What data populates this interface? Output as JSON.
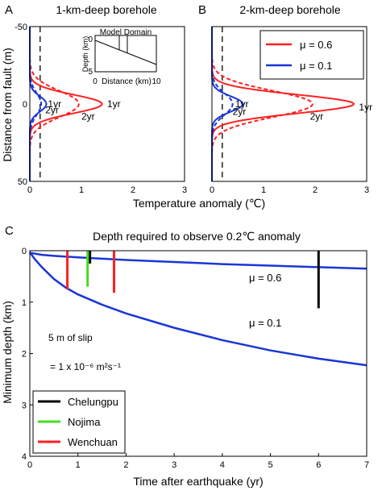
{
  "chart_data": [
    {
      "type": "line",
      "panel_letter": "A",
      "title": "1-km-deep borehole",
      "ylabel": "Distance from fault (m)",
      "xlabel": "Temperature anomaly (℃)",
      "xlim": [
        0,
        3
      ],
      "ylim": [
        -50,
        50
      ],
      "x_ticks": [
        "0",
        "1",
        "2",
        "3"
      ],
      "y_ticks": [
        "-50",
        "0",
        "50"
      ],
      "threshold_x": 0.2,
      "curve_labels": [
        {
          "text": "1yr",
          "x": 1.5,
          "y": 0
        },
        {
          "text": "2yr",
          "x": 1.0,
          "y": 8
        },
        {
          "text": "1yr",
          "x": 0.35,
          "y": 0
        },
        {
          "text": "2yr",
          "x": 0.3,
          "y": 4
        }
      ],
      "series": [
        {
          "name": "μ = 0.6, 1yr",
          "color": "#ff2020",
          "dash": "solid",
          "peak": 1.4,
          "width": 6
        },
        {
          "name": "μ = 0.6, 2yr",
          "color": "#ff2020",
          "dash": "dashed",
          "peak": 0.95,
          "width": 8.5
        },
        {
          "name": "μ = 0.1, 1yr",
          "color": "#1a36d6",
          "dash": "solid",
          "peak": 0.32,
          "width": 5
        },
        {
          "name": "μ = 0.1, 2yr",
          "color": "#1a36d6",
          "dash": "dashed",
          "peak": 0.22,
          "width": 7
        }
      ],
      "inset": {
        "title": "Model Domain",
        "xlabel": "Distance (km)",
        "ylabel": "Depth (km)",
        "x_ticks": [
          "0",
          "5",
          "10"
        ],
        "y_ticks": [
          "0",
          "5"
        ]
      }
    },
    {
      "type": "line",
      "panel_letter": "B",
      "title": "2-km-deep borehole",
      "xlim": [
        0,
        3
      ],
      "ylim": [
        -50,
        50
      ],
      "x_ticks": [
        "0",
        "1",
        "2",
        "3"
      ],
      "y_ticks": [
        "",
        "",
        ""
      ],
      "threshold_x": 0.2,
      "legend": [
        {
          "label": "μ  = 0.6",
          "color": "#ff2020"
        },
        {
          "label": "μ  = 0.1",
          "color": "#1a36d6"
        }
      ],
      "curve_labels": [
        {
          "text": "1yr",
          "x": 2.85,
          "y": 2
        },
        {
          "text": "2yr",
          "x": 1.9,
          "y": 8
        },
        {
          "text": "1yr",
          "x": 0.45,
          "y": 0
        },
        {
          "text": "2yr",
          "x": 0.4,
          "y": 5
        }
      ],
      "series": [
        {
          "name": "μ = 0.6, 1yr",
          "color": "#ff2020",
          "dash": "solid",
          "peak": 2.75,
          "width": 6
        },
        {
          "name": "μ = 0.6, 2yr",
          "color": "#ff2020",
          "dash": "dashed",
          "peak": 1.95,
          "width": 8.5
        },
        {
          "name": "μ = 0.1, 1yr",
          "color": "#1a36d6",
          "dash": "solid",
          "peak": 0.6,
          "width": 5
        },
        {
          "name": "μ = 0.1, 2yr",
          "color": "#1a36d6",
          "dash": "dashed",
          "peak": 0.4,
          "width": 7
        }
      ]
    },
    {
      "type": "line",
      "panel_letter": "C",
      "title": "Depth required to observe 0.2℃ anomaly",
      "xlabel": "Time after earthquake (yr)",
      "ylabel": "Minimum depth (km)",
      "xlim": [
        0,
        7
      ],
      "ylim": [
        0,
        4
      ],
      "x_ticks": [
        "0",
        "1",
        "2",
        "3",
        "4",
        "5",
        "6",
        "7"
      ],
      "y_ticks": [
        "0",
        "1",
        "2",
        "3",
        "4"
      ],
      "annotations": [
        {
          "text": "μ  = 0.6",
          "x": 4.55,
          "y": 0.52
        },
        {
          "text": "μ  = 0.1",
          "x": 4.55,
          "y": 1.45
        }
      ],
      "note_slip": "5 m of slip",
      "note_diffusivity": " = 1 x 10⁻⁶ m²s⁻¹",
      "series": [
        {
          "name": "μ  = 0.6",
          "color": "#1a36d6",
          "x": [
            0,
            0.25,
            0.5,
            1,
            2,
            3,
            4,
            5,
            6,
            7
          ],
          "y": [
            0.04,
            0.08,
            0.1,
            0.13,
            0.18,
            0.22,
            0.26,
            0.29,
            0.32,
            0.35
          ]
        },
        {
          "name": "μ  = 0.1",
          "color": "#1a36d6",
          "x": [
            0,
            0.1,
            0.25,
            0.5,
            0.75,
            1,
            1.5,
            2,
            3,
            4,
            5,
            6,
            7
          ],
          "y": [
            0.03,
            0.16,
            0.32,
            0.55,
            0.72,
            0.85,
            1.05,
            1.22,
            1.5,
            1.74,
            1.94,
            2.1,
            2.23
          ]
        }
      ],
      "markers": [
        {
          "label": "Chelungpu",
          "color": "#000000",
          "bars": [
            [
              1.25,
              0.0,
              0.25
            ],
            [
              6.0,
              0.0,
              1.12
            ]
          ]
        },
        {
          "label": "Nojima",
          "color": "#44dd22",
          "bars": [
            [
              1.2,
              0.0,
              0.7
            ]
          ]
        },
        {
          "label": "Wenchuan",
          "color": "#ff2020",
          "bars": [
            [
              0.78,
              0.0,
              0.75
            ],
            [
              1.75,
              0.0,
              0.82
            ]
          ]
        }
      ]
    }
  ]
}
